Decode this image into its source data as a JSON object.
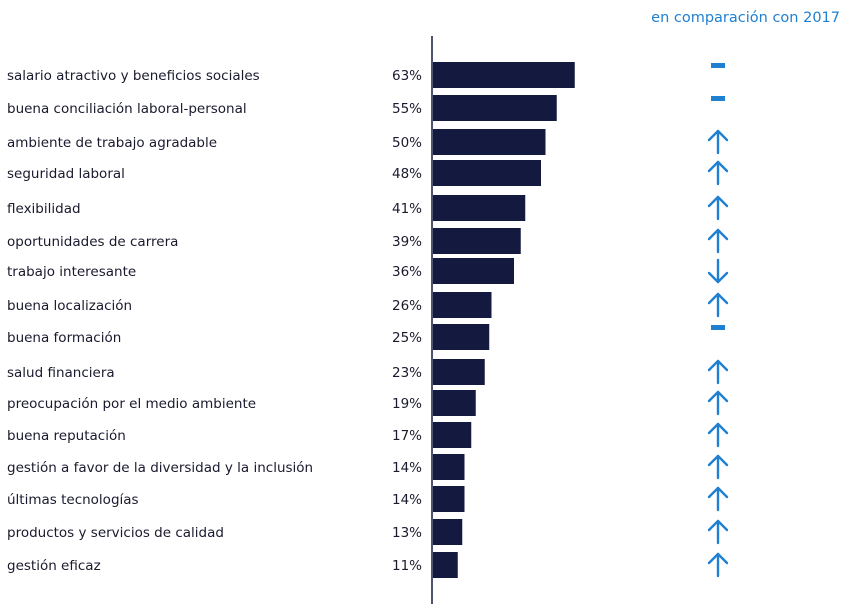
{
  "chart_data": {
    "type": "bar",
    "orientation": "horizontal",
    "comparison_header": "en comparación con 2017",
    "categories": [
      "salario atractivo y beneficios sociales",
      "buena conciliación laboral-personal",
      "ambiente de trabajo agradable",
      "seguridad laboral",
      "flexibilidad",
      "oportunidades de carrera",
      "trabajo interesante",
      "buena localización",
      "buena formación",
      "salud financiera",
      "preocupación por el medio ambiente",
      "buena reputación",
      "gestión a favor de la diversidad y la inclusión",
      "últimas tecnologías",
      "productos y servicios de calidad",
      "gestión eficaz"
    ],
    "values": [
      63,
      55,
      50,
      48,
      41,
      39,
      36,
      26,
      25,
      23,
      19,
      17,
      14,
      14,
      13,
      11
    ],
    "value_labels": [
      "63%",
      "55%",
      "50%",
      "48%",
      "41%",
      "39%",
      "36%",
      "26%",
      "25%",
      "23%",
      "19%",
      "17%",
      "14%",
      "14%",
      "13%",
      "11%"
    ],
    "trend": [
      "same",
      "same",
      "up",
      "up",
      "up",
      "up",
      "down",
      "up",
      "same",
      "up",
      "up",
      "up",
      "up",
      "up",
      "up",
      "up"
    ],
    "xlim": [
      0,
      100
    ],
    "bar_color": "#141a3f",
    "trend_color": "#1f7fd1",
    "grid": false
  }
}
